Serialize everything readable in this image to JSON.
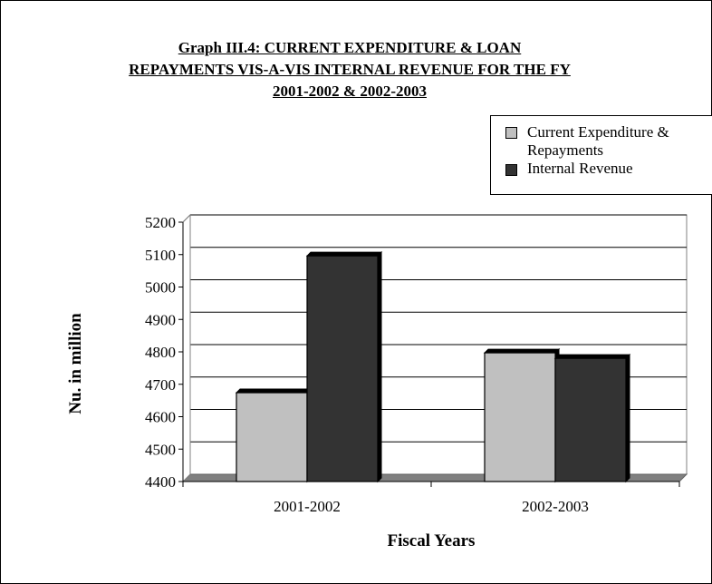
{
  "chart_data": {
    "type": "bar",
    "title_lines": [
      "Graph III.4: CURRENT EXPENDITURE & LOAN",
      "REPAYMENTS VIS-A-VIS INTERNAL REVENUE FOR THE FY",
      "2001-2002 & 2002-2003"
    ],
    "xlabel": "Fiscal Years",
    "ylabel": "Nu. in million",
    "categories": [
      "2001-2002",
      "2002-2003"
    ],
    "series": [
      {
        "name": "Current Expenditure & Repayments",
        "legend_lines": [
          "Current Expenditure &",
          "Repayments"
        ],
        "values": [
          4674,
          4797
        ],
        "color": "#c0c0c0"
      },
      {
        "name": "Internal Revenue",
        "legend_lines": [
          "Internal Revenue"
        ],
        "values": [
          5096,
          4780
        ],
        "color": "#333333"
      }
    ],
    "ylim": [
      4400,
      5200
    ],
    "yticks": [
      4400,
      4500,
      4600,
      4700,
      4800,
      4900,
      5000,
      5100,
      5200
    ],
    "grid": true,
    "legend_position": "top-right"
  }
}
